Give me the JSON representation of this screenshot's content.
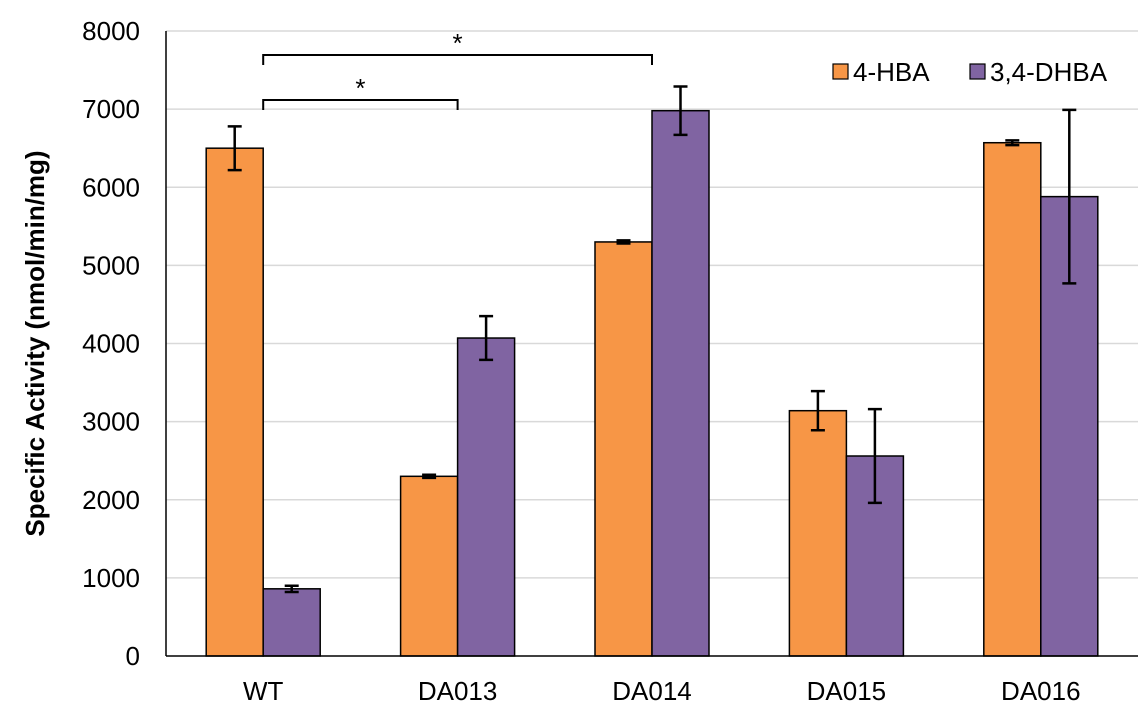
{
  "chart_data": {
    "type": "bar",
    "categories": [
      "WT",
      "DA013",
      "DA014",
      "DA015",
      "DA016"
    ],
    "series": [
      {
        "name": "4-HBA",
        "color": "#f79646",
        "values": [
          6500,
          2300,
          5300,
          3140,
          6570
        ],
        "errors": [
          280,
          20,
          20,
          250,
          30
        ]
      },
      {
        "name": "3,4-DHBA",
        "color": "#8064a2",
        "values": [
          860,
          4070,
          6980,
          2560,
          5880
        ],
        "errors": [
          40,
          280,
          310,
          600,
          1110
        ]
      }
    ],
    "title": "",
    "xlabel": "",
    "ylabel": "Specific Activity (nmol/min/mg)",
    "ylim": [
      0,
      8000
    ],
    "yticks": [
      "0",
      "1000",
      "2000",
      "3000",
      "4000",
      "5000",
      "6000",
      "7000",
      "8000"
    ],
    "grid": true,
    "legend_position": "top-right",
    "significance": [
      {
        "from": "WT",
        "to": "DA013",
        "label": "*"
      },
      {
        "from": "WT",
        "to": "DA014",
        "label": "*"
      }
    ]
  }
}
